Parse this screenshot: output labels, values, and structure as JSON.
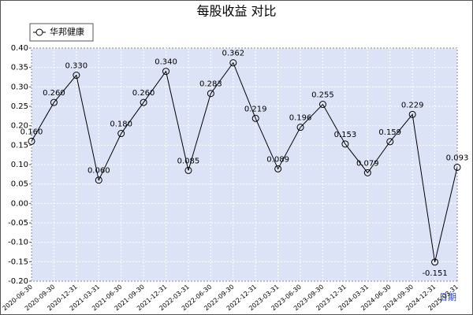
{
  "chart_data": {
    "type": "line",
    "title": "每股收益 对比",
    "xlabel": "日期",
    "categories": [
      "2020-06-30",
      "2020-09-30",
      "2020-12-31",
      "2021-03-31",
      "2021-06-30",
      "2021-09-30",
      "2021-12-31",
      "2022-03-31",
      "2022-06-30",
      "2022-09-30",
      "2022-12-31",
      "2023-03-31",
      "2023-06-30",
      "2023-09-30",
      "2023-12-31",
      "2024-03-31",
      "2024-06-30",
      "2024-09-30",
      "2024-12-31",
      "2025-03-31"
    ],
    "series": [
      {
        "name": "华邦健康",
        "color": "#000000",
        "values": [
          0.16,
          0.26,
          0.33,
          0.06,
          0.18,
          0.26,
          0.34,
          0.085,
          0.283,
          0.362,
          0.219,
          0.089,
          0.196,
          0.255,
          0.153,
          0.079,
          0.159,
          0.229,
          -0.151,
          0.093
        ],
        "value_labels": [
          "0.160",
          "0.260",
          "0.330",
          "0.060",
          "0.180",
          "0.260",
          "0.340",
          "0.085",
          "0.283",
          "0.362",
          "0.219",
          "0.089",
          "0.196",
          "0.255",
          "0.153",
          "0.079",
          "0.159",
          "0.229",
          "-0.151",
          "0.093"
        ]
      }
    ],
    "ylim": [
      -0.2,
      0.4
    ],
    "yticks": [
      {
        "value": -0.2,
        "label": "-0.20"
      },
      {
        "value": -0.15,
        "label": "-0.15"
      },
      {
        "value": -0.1,
        "label": "-0.10"
      },
      {
        "value": -0.05,
        "label": "-0.05"
      },
      {
        "value": 0,
        "label": "0.00"
      },
      {
        "value": 0.05,
        "label": "0.05"
      },
      {
        "value": 0.1,
        "label": "0.10"
      },
      {
        "value": 0.15,
        "label": "0.15"
      },
      {
        "value": 0.2,
        "label": "0.20"
      },
      {
        "value": 0.25,
        "label": "0.25"
      },
      {
        "value": 0.3,
        "label": "0.30"
      },
      {
        "value": 0.35,
        "label": "0.35"
      },
      {
        "value": 0.4,
        "label": "0.40"
      }
    ],
    "grid": true,
    "legend": "top-left"
  }
}
